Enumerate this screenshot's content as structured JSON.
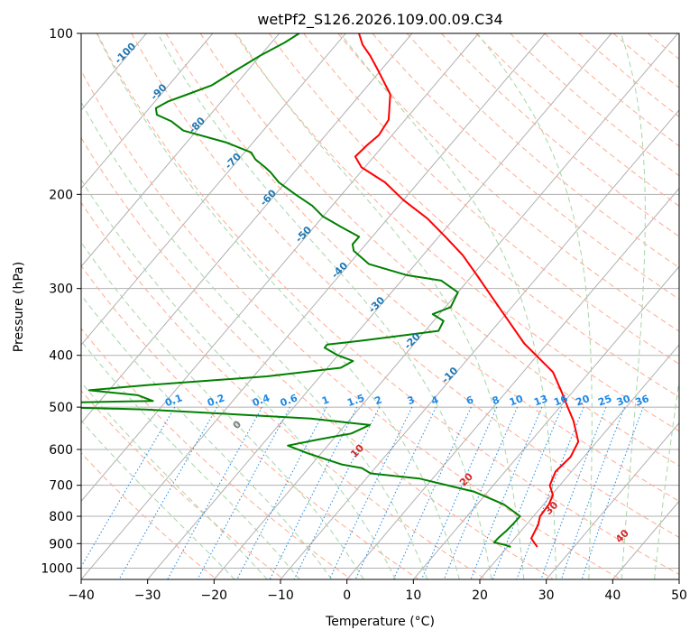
{
  "chart_data": {
    "type": "line",
    "title": "wetPf2_S126.2026.109.00.09.C34",
    "xlabel": "Temperature (°C)",
    "ylabel": "Pressure (hPa)",
    "xlim": [
      -40,
      50
    ],
    "ylim": [
      1050,
      100
    ],
    "yscale": "log",
    "skew": true,
    "grid": true,
    "x_ticks": [
      -40,
      -30,
      -20,
      -10,
      0,
      10,
      20,
      30,
      40,
      50
    ],
    "y_ticks": [
      100,
      200,
      300,
      400,
      500,
      600,
      700,
      800,
      900,
      1000
    ],
    "colors": {
      "temperature": "#ff0000",
      "dewpoint": "#008000",
      "isotherm_grid": "#b0b0b0",
      "dry_adiabat": "#ffab91",
      "moist_adiabat": "#a5d6a7",
      "mixing_ratio": "#1e88e5"
    },
    "series": [
      {
        "role": "temperature",
        "points": [
          [
            24.5,
            913
          ],
          [
            22.5,
            880
          ],
          [
            21.8,
            830
          ],
          [
            21.0,
            800
          ],
          [
            20.8,
            760
          ],
          [
            20.2,
            730
          ],
          [
            18.5,
            700
          ],
          [
            17.6,
            660
          ],
          [
            18.0,
            620
          ],
          [
            17.2,
            580
          ],
          [
            13.8,
            530
          ],
          [
            11.2,
            500
          ],
          [
            8.5,
            470
          ],
          [
            4.5,
            430
          ],
          [
            -3.5,
            380
          ],
          [
            -9.5,
            340
          ],
          [
            -14.5,
            310
          ],
          [
            -19.0,
            285
          ],
          [
            -24.0,
            260
          ],
          [
            -29.0,
            240
          ],
          [
            -34.0,
            222
          ],
          [
            -40.0,
            205
          ],
          [
            -45.0,
            190
          ],
          [
            -50.5,
            178
          ],
          [
            -52.8,
            170
          ],
          [
            -52.5,
            162
          ],
          [
            -52.0,
            155
          ],
          [
            -52.5,
            145
          ],
          [
            -55.5,
            130
          ],
          [
            -60.5,
            117
          ],
          [
            -63.5,
            110
          ],
          [
            -66.0,
            105
          ],
          [
            -68.0,
            100
          ]
        ]
      },
      {
        "role": "dewpoint",
        "points": [
          [
            20.5,
            913
          ],
          [
            19.4,
            905
          ],
          [
            17.4,
            895
          ],
          [
            17.5,
            875
          ],
          [
            17.8,
            850
          ],
          [
            17.9,
            830
          ],
          [
            18.0,
            800
          ],
          [
            14.0,
            760
          ],
          [
            8.0,
            720
          ],
          [
            -2.0,
            680
          ],
          [
            -10.0,
            665
          ],
          [
            -12.0,
            650
          ],
          [
            -15.5,
            640
          ],
          [
            -22.0,
            610
          ],
          [
            -26.0,
            590
          ],
          [
            -22.3,
            575
          ],
          [
            -18.0,
            560
          ],
          [
            -16.3,
            540
          ],
          [
            -26.0,
            525
          ],
          [
            -52.0,
            505
          ],
          [
            -66.0,
            500
          ],
          [
            -64.0,
            490
          ],
          [
            -52.0,
            487
          ],
          [
            -55.0,
            475
          ],
          [
            -63.0,
            465
          ],
          [
            -55.0,
            455
          ],
          [
            -48.0,
            448
          ],
          [
            -38.0,
            438
          ],
          [
            -28.0,
            422
          ],
          [
            -27.0,
            410
          ],
          [
            -30.0,
            400
          ],
          [
            -33.0,
            387
          ],
          [
            -33.0,
            382
          ],
          [
            -28.0,
            375
          ],
          [
            -18.0,
            360
          ],
          [
            -18.5,
            345
          ],
          [
            -21.0,
            335
          ],
          [
            -19.2,
            325
          ],
          [
            -20.0,
            305
          ],
          [
            -24.0,
            290
          ],
          [
            -30.0,
            283
          ],
          [
            -37.0,
            270
          ],
          [
            -41.0,
            255
          ],
          [
            -42.0,
            248
          ],
          [
            -42.0,
            240
          ],
          [
            -46.0,
            230
          ],
          [
            -50.0,
            220
          ],
          [
            -53.0,
            210
          ],
          [
            -57.0,
            200
          ],
          [
            -61.0,
            190
          ],
          [
            -63.5,
            182
          ],
          [
            -65.0,
            178
          ],
          [
            -67.5,
            172
          ],
          [
            -69.0,
            167
          ],
          [
            -74.0,
            160
          ],
          [
            -82.0,
            152
          ],
          [
            -85.0,
            146
          ],
          [
            -88.0,
            142
          ],
          [
            -89.0,
            138
          ],
          [
            -88.0,
            134
          ],
          [
            -86.0,
            130
          ],
          [
            -83.5,
            125
          ],
          [
            -82.0,
            118
          ],
          [
            -80.0,
            110
          ],
          [
            -78.0,
            104
          ],
          [
            -77.0,
            100
          ]
        ]
      }
    ],
    "dry_adiabat_labels": [
      "-100",
      "-90",
      "-80",
      "-70",
      "-60",
      "-50",
      "-40",
      "-30",
      "-20",
      "-10"
    ],
    "moist_adiabat_labels": [
      "0",
      "10",
      "20",
      "30",
      "40"
    ],
    "mixing_ratio_labels": [
      "0.1",
      "0.2",
      "0.4",
      "0.6",
      "1",
      "1.5",
      "2",
      "3",
      "4",
      "6",
      "8",
      "10",
      "13",
      "16",
      "20",
      "25",
      "30",
      "36"
    ]
  }
}
